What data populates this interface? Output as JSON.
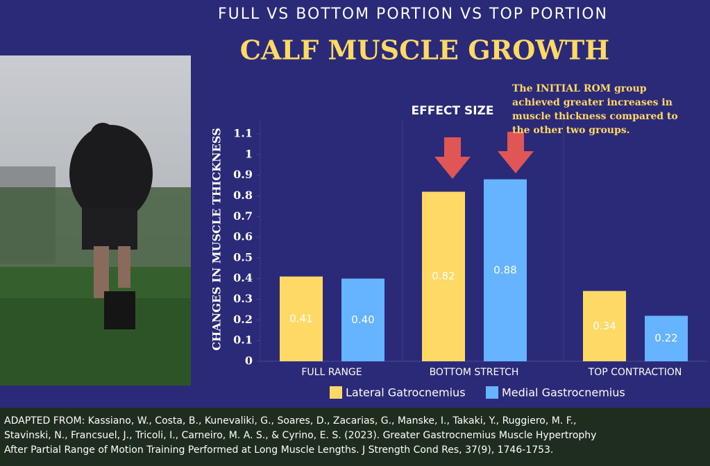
{
  "chart_data": {
    "type": "bar",
    "title": "CALF MUSCLE GROWTH",
    "subtitle": "FULL VS BOTTOM PORTION VS TOP PORTION",
    "chart_label": "EFFECT SIZE",
    "y_label": "CHANGES IN MUSCLE THICKNESS",
    "annotation": [
      "The INITIAL ROM group",
      "achieved greater increases in",
      "muscle thickness compared to",
      "the other two groups."
    ],
    "categories": [
      "FULL RANGE",
      "BOTTOM STRETCH",
      "TOP CONTRACTION"
    ],
    "series": [
      {
        "name": "Lateral Gatrocnemius",
        "color": "#ffd966",
        "values": [
          0.41,
          0.82,
          0.34
        ],
        "value_labels": [
          "0.41",
          "0.82",
          "0.34"
        ]
      },
      {
        "name": "Medial Gastrocnemius",
        "color": "#66b3ff",
        "values": [
          0.4,
          0.88,
          0.22
        ],
        "value_labels": [
          "0.40",
          "0.88",
          "0.22"
        ]
      }
    ],
    "ylim": [
      0,
      1.1
    ],
    "yticks": [
      0,
      0.1,
      0.2,
      0.3,
      0.4,
      0.5,
      0.6,
      0.7,
      0.8,
      0.9,
      1,
      1.1
    ]
  },
  "footer": {
    "lines": [
      "ADAPTED FROM: Kassiano, W., Costa, B., Kunevaliki, G., Soares, D., Zacarias, G., Manske, I., Takaki, Y., Ruggiero, M. F.,",
      "Stavinski, N., Francsuel, J., Tricoli, I., Carneiro, M. A. S., & Cyrino, E. S. (2023). Greater Gastrocnemius Muscle Hypertrophy",
      "After Partial Range of Motion Training Performed at Long Muscle Lengths. J Strength Cond Res, 37(9), 1746-1753."
    ]
  }
}
